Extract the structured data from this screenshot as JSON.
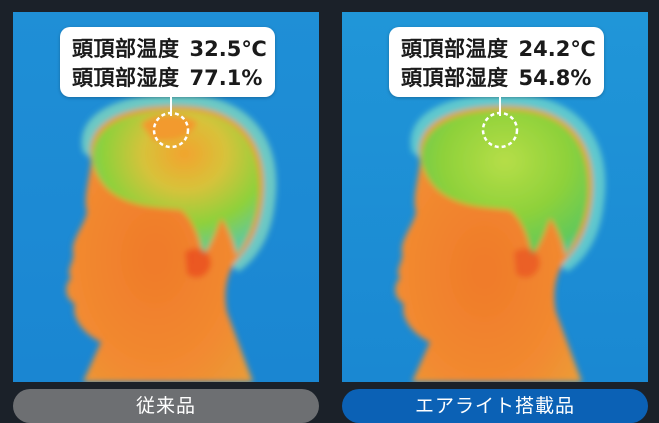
{
  "colors": {
    "page_background": "#1b2129",
    "thermal_cold": "#1f8fd6",
    "thermal_cool": "#4ec8e6",
    "thermal_warm": "#8ed13a",
    "thermal_hot": "#f08a2a",
    "tag_conventional": "#6d6f72",
    "tag_product": "#0b61b5"
  },
  "panels": [
    {
      "top_temp_label": "頭頂部温度",
      "top_temp_value": "32.5℃",
      "top_humidity_label": "頭頂部湿度",
      "top_humidity_value": "77.1%",
      "caption": "従来品"
    },
    {
      "top_temp_label": "頭頂部温度",
      "top_temp_value": "24.2℃",
      "top_humidity_label": "頭頂部湿度",
      "top_humidity_value": "54.8%",
      "caption": "エアライト搭載品"
    }
  ]
}
